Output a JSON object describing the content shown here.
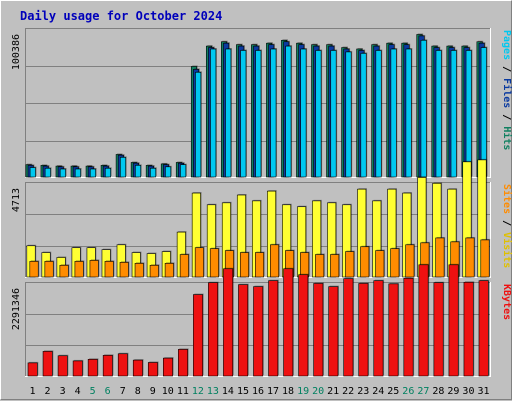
{
  "window": {
    "title": "Daily usage for October 2024"
  },
  "chart_data": {
    "type": "bar",
    "title": "Daily usage for October 2024",
    "x": [
      "1",
      "2",
      "3",
      "4",
      "5",
      "6",
      "7",
      "8",
      "9",
      "10",
      "11",
      "12",
      "13",
      "14",
      "15",
      "16",
      "17",
      "18",
      "19",
      "20",
      "21",
      "22",
      "23",
      "24",
      "25",
      "26",
      "27",
      "28",
      "29",
      "30",
      "31"
    ],
    "weekend_days": [
      "5",
      "6",
      "12",
      "13",
      "19",
      "20",
      "26",
      "27"
    ],
    "colors": {
      "hits": "#108060",
      "files": "#0a3aa0",
      "pages": "#00c8f0",
      "visits": "#ffff33",
      "sites": "#ff8c00",
      "kbytes": "#ee1111",
      "weekday": "#000000",
      "weekend": "#008060"
    },
    "panels": [
      {
        "id": "top",
        "ymax": 100386,
        "ymax_label": "100386",
        "axis_label": [
          {
            "text": "Pages",
            "color": "#00c8f0"
          },
          {
            "text": " / ",
            "color": "#000000"
          },
          {
            "text": "Files",
            "color": "#0a3aa0"
          },
          {
            "text": " / ",
            "color": "#000000"
          },
          {
            "text": "Hits",
            "color": "#108060"
          }
        ],
        "series": [
          {
            "name": "Hits",
            "color": "#108060",
            "values": [
              8500,
              8000,
              7500,
              7500,
              7500,
              8000,
              15500,
              10000,
              8000,
              9000,
              10000,
              76000,
              90000,
              93000,
              91000,
              91000,
              92000,
              94000,
              92000,
              91000,
              91000,
              89000,
              88000,
              91000,
              92000,
              92000,
              98000,
              90000,
              90000,
              90000,
              93000
            ]
          },
          {
            "name": "Files",
            "color": "#0a3aa0",
            "values": [
              8000,
              7500,
              7000,
              7000,
              7000,
              7500,
              15000,
              9500,
              7500,
              8500,
              9500,
              74000,
              89000,
              92000,
              90000,
              90000,
              91000,
              93000,
              91000,
              90000,
              90000,
              88000,
              87000,
              90000,
              91000,
              91000,
              97000,
              89000,
              89000,
              89000,
              92000
            ]
          },
          {
            "name": "Pages",
            "color": "#00c8f0",
            "values": [
              6500,
              6000,
              5500,
              5500,
              5500,
              6000,
              13500,
              8000,
              6000,
              7000,
              8500,
              72000,
              88000,
              88000,
              87000,
              87000,
              88000,
              90000,
              88000,
              87000,
              87000,
              86000,
              85000,
              87000,
              88000,
              88000,
              94000,
              87000,
              87000,
              87000,
              89000
            ]
          }
        ]
      },
      {
        "id": "middle",
        "ymax": 4713,
        "ymax_label": "4713",
        "axis_label": [
          {
            "text": "Sites",
            "color": "#ff8c00"
          },
          {
            "text": " / ",
            "color": "#000000"
          },
          {
            "text": "Visits",
            "color": "#e0c000"
          }
        ],
        "series": [
          {
            "name": "Visits",
            "color": "#ffff33",
            "values": [
              1600,
              1250,
              1000,
              1500,
              1500,
              1400,
              1650,
              1250,
              1200,
              1300,
              2300,
              4300,
              3700,
              3800,
              4200,
              3900,
              4400,
              3700,
              3600,
              3900,
              3800,
              3700,
              4500,
              3900,
              4500,
              4300,
              5100,
              4800,
              4500,
              5900,
              6000
            ]
          },
          {
            "name": "Sites",
            "color": "#ff8c00",
            "values": [
              800,
              800,
              600,
              800,
              850,
              800,
              750,
              700,
              600,
              700,
              1150,
              1500,
              1450,
              1350,
              1250,
              1250,
              1650,
              1350,
              1250,
              1150,
              1150,
              1300,
              1550,
              1350,
              1450,
              1650,
              1750,
              2000,
              1800,
              2000,
              1900
            ]
          }
        ]
      },
      {
        "id": "bottom",
        "ymax": 2291346,
        "ymax_label": "2291346",
        "axis_label": [
          {
            "text": "KBytes",
            "color": "#ee1111"
          }
        ],
        "series": [
          {
            "name": "KBytes",
            "color": "#ee1111",
            "values": [
              330000,
              620000,
              510000,
              380000,
              420000,
              520000,
              560000,
              400000,
              340000,
              450000,
              670000,
              2050000,
              2350000,
              2700000,
              2300000,
              2250000,
              2400000,
              2700000,
              2550000,
              2330000,
              2250000,
              2450000,
              2330000,
              2400000,
              2320000,
              2460000,
              2800000,
              2350000,
              2800000,
              2360000,
              2400000
            ]
          }
        ]
      }
    ]
  }
}
